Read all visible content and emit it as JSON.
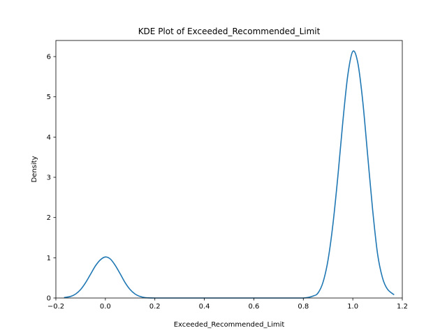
{
  "chart_data": {
    "type": "line",
    "title": "KDE Plot of Exceeded_Recommended_Limit",
    "xlabel": "Exceeded_Recommended_Limit",
    "ylabel": "Density",
    "xlim": [
      -0.2,
      1.2
    ],
    "ylim": [
      0,
      6.4
    ],
    "xticks": [
      -0.2,
      0.0,
      0.2,
      0.4,
      0.6,
      0.8,
      1.0,
      1.2
    ],
    "xtick_labels": [
      "−0.2",
      "0.0",
      "0.2",
      "0.4",
      "0.6",
      "0.8",
      "1.0",
      "1.2"
    ],
    "yticks": [
      0,
      1,
      2,
      3,
      4,
      5,
      6
    ],
    "ytick_labels": [
      "0",
      "1",
      "2",
      "3",
      "4",
      "5",
      "6"
    ],
    "grid": false,
    "series": [
      {
        "color": "#1f77b4",
        "x": [
          -0.167,
          -0.14,
          -0.12,
          -0.1,
          -0.08,
          -0.06,
          -0.04,
          -0.02,
          0.0,
          0.02,
          0.04,
          0.06,
          0.08,
          0.1,
          0.12,
          0.14,
          0.16,
          0.2,
          0.3,
          0.4,
          0.5,
          0.6,
          0.7,
          0.8,
          0.84,
          0.86,
          0.88,
          0.9,
          0.92,
          0.94,
          0.96,
          0.98,
          1.0,
          1.02,
          1.04,
          1.06,
          1.08,
          1.1,
          1.12,
          1.14,
          1.167
        ],
        "y": [
          0.01,
          0.04,
          0.1,
          0.21,
          0.38,
          0.59,
          0.8,
          0.95,
          1.02,
          0.97,
          0.81,
          0.6,
          0.38,
          0.21,
          0.1,
          0.04,
          0.01,
          0.0,
          0.0,
          0.0,
          0.0,
          0.0,
          0.0,
          0.0,
          0.05,
          0.13,
          0.4,
          0.95,
          1.85,
          3.05,
          4.4,
          5.55,
          6.13,
          5.85,
          4.9,
          3.55,
          2.2,
          1.1,
          0.5,
          0.22,
          0.08
        ]
      }
    ]
  }
}
